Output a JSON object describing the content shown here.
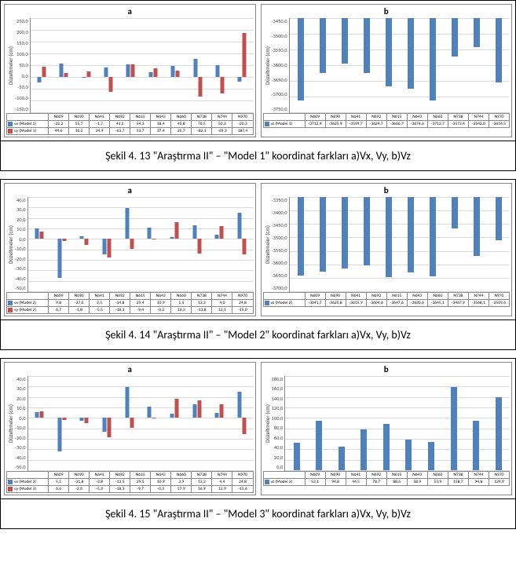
{
  "colors": {
    "series1": "#4f81bd",
    "series2": "#c0504d",
    "grid": "#d9d9d9",
    "border": "#888888",
    "text": "#333333"
  },
  "figures": [
    {
      "caption": "Şekil 4. 13   \"Araştırma II\" – \"Model 1\" koordinat farkları a)Vx, Vy, b)Vz",
      "chartA": {
        "title": "a",
        "ylabel": "Düzeltmeler (cm)",
        "ymin": -150,
        "ymax": 250,
        "ystep": 50,
        "height": 120,
        "categories": [
          "N609",
          "N690",
          "N641",
          "N692",
          "N615",
          "N643",
          "N660",
          "N738",
          "N744",
          "N970"
        ],
        "series": [
          {
            "name": "vx (Model 1)",
            "color": "#4f81bd",
            "values": [
              -22.2,
              55.7,
              -1.7,
              41.5,
              54.3,
              18.4,
              45.8,
              76.5,
              50.3,
              -20.3
            ]
          },
          {
            "name": "vy (Model 1)",
            "color": "#c0504d",
            "values": [
              44.6,
              16.2,
              24.9,
              -63.7,
              53.7,
              37.4,
              25.7,
              -82.1,
              -69.3,
              187.4
            ]
          }
        ]
      },
      "chartB": {
        "title": "b",
        "ylabel": "Düzeltmeler (cm)",
        "ymin": -3750,
        "ymax": -3450,
        "ystep": 50,
        "height": 120,
        "categories": [
          "N609",
          "N690",
          "N641",
          "N692",
          "N615",
          "N643",
          "N660",
          "N738",
          "N744",
          "N970"
        ],
        "series": [
          {
            "name": "vz (Model 1)",
            "color": "#4f81bd",
            "values": [
              -3712.4,
              -3625.9,
              -3594.7,
              -3624.7,
              -3666.7,
              -3674.6,
              -3712.7,
              -3573.4,
              -3542.0,
              -3654.5
            ]
          }
        ]
      }
    },
    {
      "caption": "Şekil 4. 14   \"Araştırma II\" – \"Model 2\" koordinat farkları a)Vx, Vy, b)Vz",
      "chartA": {
        "title": "a",
        "ylabel": "Düzeltmeler (cm)",
        "ymin": -50,
        "ymax": 40,
        "ystep": 10,
        "height": 120,
        "categories": [
          "N609",
          "N690",
          "N641",
          "N692",
          "N615",
          "N643",
          "N660",
          "N738",
          "N744",
          "N970"
        ],
        "series": [
          {
            "name": "vx (Model 2)",
            "color": "#4f81bd",
            "values": [
              9.8,
              -37.0,
              2.5,
              -14.8,
              29.4,
              10.9,
              1.5,
              13.3,
              4.0,
              24.8
            ]
          },
          {
            "name": "vy (Model 2)",
            "color": "#c0504d",
            "values": [
              6.7,
              -1.8,
              -5.5,
              -18.1,
              -9.4,
              -0.2,
              16.3,
              -13.8,
              12.1,
              -15.0
            ]
          }
        ]
      },
      "chartB": {
        "title": "b",
        "ylabel": "Düzeltmeler (cm)",
        "ymin": -3700,
        "ymax": -3350,
        "ystep": 50,
        "height": 120,
        "categories": [
          "N609",
          "N690",
          "N641",
          "N692",
          "N615",
          "N643",
          "N660",
          "N738",
          "N744",
          "N970"
        ],
        "series": [
          {
            "name": "vz (Model 2)",
            "color": "#4f81bd",
            "values": [
              -3641.7,
              -3625.8,
              -3615.9,
              -3604.6,
              -3647.6,
              -3630.6,
              -3645.1,
              -3467.9,
              -3568.1,
              -3509.6
            ]
          }
        ]
      }
    },
    {
      "caption": "Şekil 4. 15   \"Araştırma II\" – \"Model 3\" koordinat farkları a)Vx, Vy, b)Vz",
      "chartA": {
        "title": "a",
        "ylabel": "Düzeltmeler (cm)",
        "ymin": -50,
        "ymax": 40,
        "ystep": 10,
        "height": 120,
        "categories": [
          "N609",
          "N690",
          "N641",
          "N692",
          "N615",
          "N643",
          "N660",
          "N738",
          "N744",
          "N970"
        ],
        "series": [
          {
            "name": "vx (Model 3)",
            "color": "#4f81bd",
            "values": [
              5.5,
              -31.8,
              -2.8,
              -13.5,
              29.5,
              10.9,
              3.9,
              13.3,
              4.4,
              24.8
            ]
          },
          {
            "name": "vy (Model 3)",
            "color": "#c0504d",
            "values": [
              6.6,
              -2.0,
              -5.3,
              -18.3,
              -9.7,
              -0.3,
              17.9,
              16.9,
              12.9,
              -15.6
            ]
          }
        ]
      },
      "chartB": {
        "title": "b",
        "ylabel": "Düzeltmeler (cm)",
        "ymin": 0,
        "ymax": 180,
        "ystep": 20,
        "height": 120,
        "categories": [
          "N609",
          "N690",
          "N641",
          "N692",
          "N615",
          "N643",
          "N660",
          "N738",
          "N744",
          "N970"
        ],
        "series": [
          {
            "name": "vz (Model 3)",
            "color": "#4f81bd",
            "values": [
              53.1,
              94.8,
              44.5,
              78.7,
              88.6,
              58.9,
              53.9,
              158.7,
              94.8,
              139.9
            ]
          }
        ]
      }
    }
  ]
}
